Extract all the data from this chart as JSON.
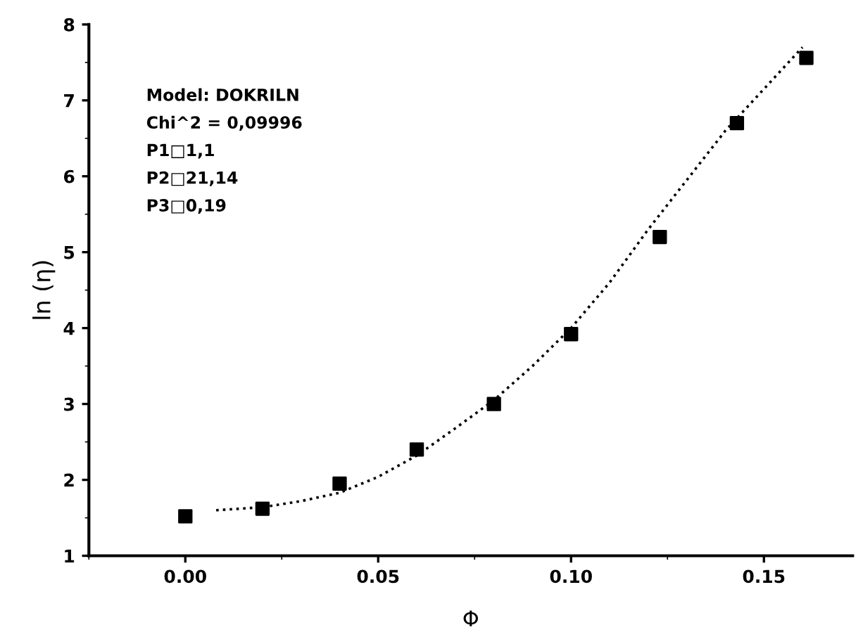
{
  "chart_data": {
    "type": "scatter",
    "xlabel": "Φ",
    "ylabel": "ln (η)",
    "xlim": [
      -0.025,
      0.173
    ],
    "ylim": [
      1,
      8
    ],
    "xticks": [
      {
        "value": 0.0,
        "label": "0.00"
      },
      {
        "value": 0.05,
        "label": "0.05"
      },
      {
        "value": 0.1,
        "label": "0.10"
      },
      {
        "value": 0.15,
        "label": "0.15"
      }
    ],
    "yticks": [
      1,
      2,
      3,
      4,
      5,
      6,
      7,
      8
    ],
    "grid": false,
    "series": [
      {
        "marker": "square",
        "color": "#000000",
        "x": [
          0.0,
          0.02,
          0.04,
          0.06,
          0.08,
          0.1,
          0.123,
          0.143,
          0.161
        ],
        "values": [
          1.52,
          1.62,
          1.95,
          2.4,
          3.0,
          3.92,
          5.2,
          6.7,
          7.56
        ]
      },
      {
        "type": "line",
        "line_style": "dotted",
        "color": "#000000",
        "x": [
          0.008,
          0.02,
          0.03,
          0.04,
          0.05,
          0.06,
          0.07,
          0.08,
          0.09,
          0.1,
          0.11,
          0.12,
          0.13,
          0.14,
          0.15,
          0.16
        ],
        "values": [
          1.6,
          1.64,
          1.72,
          1.83,
          2.04,
          2.32,
          2.68,
          3.05,
          3.5,
          4.0,
          4.6,
          5.3,
          5.95,
          6.6,
          7.15,
          7.7
        ]
      }
    ],
    "annotations": [
      "Model: DOKRILN",
      "Chi^2 = 0,09996",
      "P1□1,1",
      "P2□21,14",
      "P3□0,19"
    ]
  }
}
